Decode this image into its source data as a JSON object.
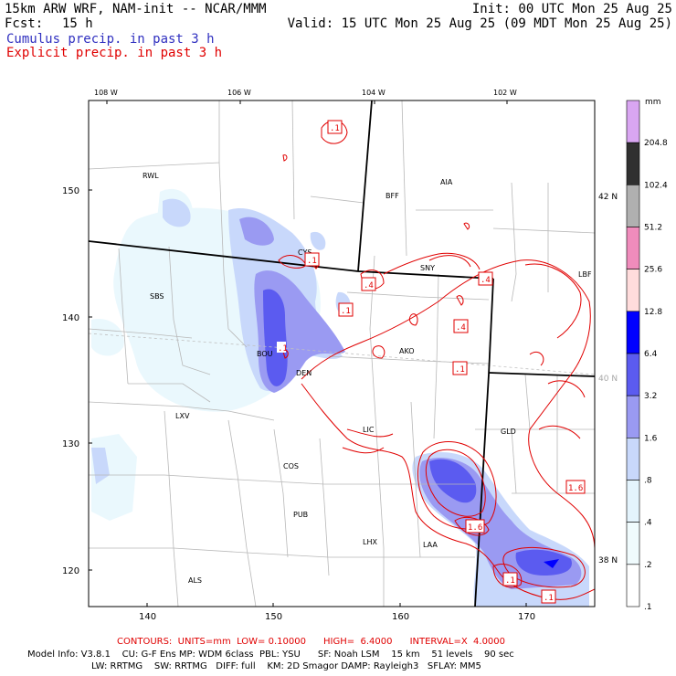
{
  "header": {
    "model": "15km ARW WRF, NAM-init -- NCAR/MMM",
    "init": "Init: 00 UTC Mon 25 Aug 25",
    "fcst_label": "Fcst:",
    "fcst_value": "15 h",
    "valid": "Valid: 15 UTC Mon 25 Aug 25 (09 MDT Mon 25 Aug 25)",
    "legend_cumulus": "Cumulus precip. in past 3 h",
    "legend_explicit": "Explicit precip. in past 3 h"
  },
  "axes": {
    "lon_top": [
      "108 W",
      "106 W",
      "104 W",
      "102 W"
    ],
    "lat_right": [
      "42 N",
      "40 N",
      "38 N"
    ],
    "grid_x": [
      "140",
      "150",
      "160",
      "170"
    ],
    "grid_y": [
      "150",
      "140",
      "130",
      "120"
    ]
  },
  "cities": [
    "RWL",
    "CYS",
    "BFF",
    "AIA",
    "SNY",
    "LBF",
    "SBS",
    "BOU",
    "DEN",
    "AKO",
    "LXV",
    "LIC",
    "GLD",
    "COS",
    "PUB",
    "LHX",
    "LAA",
    "ALS"
  ],
  "contour_labels": [
    ".1",
    ".1",
    ".4",
    ".1",
    ".4",
    ".4",
    ".1",
    ".1",
    "1.6",
    "1.6",
    ".1",
    ".1"
  ],
  "colorbar": {
    "unit": "mm",
    "levels": [
      "204.8",
      "102.4",
      "51.2",
      "25.6",
      "12.8",
      "6.4",
      "3.2",
      "1.6",
      ".8",
      ".4",
      ".2",
      ".1"
    ],
    "colors": [
      "#d9a6f2",
      "#303030",
      "#b0b0b0",
      "#f08cbc",
      "#ffdcdc",
      "#0000ff",
      "#5b5bf0",
      "#9a9af2",
      "#c8d8fb",
      "#e4f4fd",
      "#f0fbfd",
      "#ffffff"
    ]
  },
  "footer": {
    "contours": "CONTOURS:  UNITS=mm  LOW= 0.10000      HIGH=  6.4000      INTERVAL=X  4.0000",
    "model_info_1": "Model Info: V3.8.1    CU: G-F Ens MP: WDM 6class  PBL: YSU      SF: Noah LSM    15 km    51 levels    90 sec",
    "model_info_2": "LW: RRTMG    SW: RRTMG   DIFF: full    KM: 2D Smagor DAMP: Rayleigh3   SFLAY: MM5"
  }
}
